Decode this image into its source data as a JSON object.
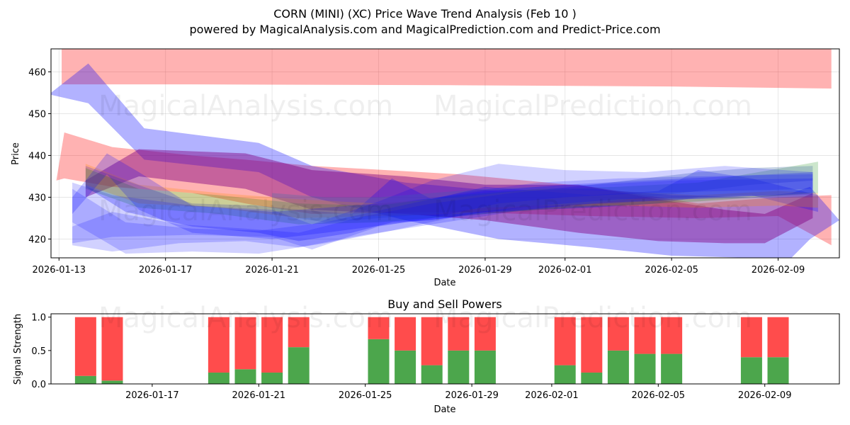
{
  "watermarks": [
    "MagicalAnalysis.com",
    "MagicalPrediction.com"
  ],
  "chart_data": [
    {
      "type": "area",
      "title": "CORN (MINI) (XC) Price Wave Trend Analysis (Feb 10 )",
      "subtitle": "powered by MagicalAnalysis.com and MagicalPrediction.com and Predict-Price.com",
      "xlabel": "Date",
      "ylabel": "Price",
      "xlim_days": [
        -0.3,
        29.3
      ],
      "ylim": [
        415.5,
        465.5
      ],
      "grid": true,
      "x_ticks": [
        {
          "day": 0,
          "label": "2026-01-13"
        },
        {
          "day": 4,
          "label": "2026-01-17"
        },
        {
          "day": 8,
          "label": "2026-01-21"
        },
        {
          "day": 12,
          "label": "2026-01-25"
        },
        {
          "day": 16,
          "label": "2026-01-29"
        },
        {
          "day": 19,
          "label": "2026-02-01"
        },
        {
          "day": 23,
          "label": "2026-02-05"
        },
        {
          "day": 27,
          "label": "2026-02-09"
        }
      ],
      "y_ticks": [
        420,
        430,
        440,
        450,
        460
      ],
      "colors": {
        "red": "#ff0000",
        "blue": "#0000ff",
        "green": "#008000",
        "purple": "#800080",
        "orange": "#ff8c00",
        "slate": "#4a6fa5"
      },
      "bands": [
        {
          "color": "red",
          "opacity": 0.3,
          "points": [
            [
              0.1,
              465.5,
              457.0
            ],
            [
              5,
              465.5,
              457.0
            ],
            [
              15,
              465.5,
              456.8
            ],
            [
              23,
              465.5,
              456.5
            ],
            [
              29,
              465.5,
              456.0
            ]
          ]
        },
        {
          "color": "red",
          "opacity": 0.3,
          "points": [
            [
              -0.1,
              434.0,
              434.0
            ],
            [
              0.2,
              445.5,
              434.5
            ],
            [
              2,
              442.0,
              432.5
            ],
            [
              5,
              440.0,
              431.0
            ],
            [
              7,
              439.0,
              428.5
            ],
            [
              9.5,
              437.5,
              426.0
            ],
            [
              15,
              435.5,
              426.5
            ],
            [
              20,
              432.5,
              425.5
            ],
            [
              24,
              428.5,
              425.0
            ],
            [
              27,
              430.0,
              425.5
            ],
            [
              29,
              430.5,
              418.5
            ]
          ]
        },
        {
          "color": "blue",
          "opacity": 0.3,
          "points": [
            [
              -0.3,
              455.0,
              454.5
            ],
            [
              1.1,
              462.0,
              452.5
            ],
            [
              3.2,
              446.5,
              439.0
            ],
            [
              7.5,
              443.0,
              436.0
            ],
            [
              9.5,
              437.5,
              430.0
            ],
            [
              13,
              433.5,
              424.5
            ],
            [
              16.5,
              431.5,
              420.0
            ],
            [
              20,
              432.0,
              418.0
            ],
            [
              23,
              430.5,
              416.0
            ],
            [
              26,
              430.0,
              415.5
            ],
            [
              27.5,
              431.0,
              415.5
            ],
            [
              28.2,
              432.5,
              420.0
            ],
            [
              29.3,
              424.5,
              424.5
            ]
          ]
        },
        {
          "color": "purple",
          "opacity": 0.45,
          "points": [
            [
              1.0,
              434.0,
              430.0
            ],
            [
              3,
              441.5,
              435.0
            ],
            [
              7,
              440.5,
              432.0
            ],
            [
              9.5,
              436.5,
              427.0
            ],
            [
              13,
              435.0,
              426.0
            ],
            [
              16,
              433.0,
              424.5
            ],
            [
              19.5,
              433.0,
              421.5
            ],
            [
              22.5,
              429.5,
              419.5
            ],
            [
              25,
              427.0,
              419.0
            ],
            [
              26.5,
              426.0,
              419.0
            ],
            [
              28.3,
              431.0,
              425.0
            ]
          ]
        },
        {
          "color": "blue",
          "opacity": 0.25,
          "points": [
            [
              1,
              437.5,
              432.5
            ],
            [
              2.5,
              434.0,
              426.5
            ],
            [
              5,
              428.5,
              423.0
            ],
            [
              7.5,
              428.0,
              421.5
            ],
            [
              9,
              427.0,
              419.5
            ],
            [
              11,
              426.0,
              421.5
            ],
            [
              12.5,
              434.5,
              424.0
            ],
            [
              14,
              429.5,
              424.5
            ],
            [
              16,
              432.5,
              426.5
            ],
            [
              18,
              431.5,
              427.0
            ],
            [
              20,
              430.5,
              427.5
            ],
            [
              22.5,
              431.5,
              428.5
            ],
            [
              24,
              436.5,
              430.0
            ],
            [
              26,
              434.5,
              430.5
            ],
            [
              28.5,
              430.5,
              426.5
            ]
          ]
        },
        {
          "color": "orange",
          "opacity": 0.25,
          "points": [
            [
              1,
              438.0,
              433.0
            ],
            [
              3,
              433.0,
              428.5
            ],
            [
              6,
              431.0,
              427.5
            ],
            [
              9,
              429.5,
              425.0
            ],
            [
              12,
              428.5,
              425.5
            ],
            [
              15,
              430.0,
              426.0
            ],
            [
              18,
              432.0,
              428.0
            ],
            [
              21,
              431.5,
              428.0
            ],
            [
              24,
              430.5,
              427.5
            ],
            [
              27,
              431.5,
              428.0
            ],
            [
              28.5,
              431.0,
              427.5
            ]
          ]
        },
        {
          "color": "green",
          "opacity": 0.2,
          "points": [
            [
              1,
              437.0,
              432.0
            ],
            [
              3,
              432.0,
              427.5
            ],
            [
              6,
              430.5,
              426.0
            ],
            [
              9,
              428.5,
              423.5
            ],
            [
              12,
              428.0,
              424.0
            ],
            [
              15,
              430.5,
              425.5
            ],
            [
              18,
              432.0,
              427.0
            ],
            [
              21,
              432.5,
              428.0
            ],
            [
              24,
              433.5,
              429.0
            ],
            [
              28.5,
              438.5,
              431.0
            ]
          ]
        },
        {
          "color": "slate",
          "opacity": 0.3,
          "points": [
            [
              8,
              431.0,
              426.0
            ],
            [
              10,
              430.0,
              424.0
            ],
            [
              12,
              430.0,
              425.0
            ],
            [
              14,
              431.0,
              426.0
            ],
            [
              16,
              432.0,
              427.5
            ],
            [
              18,
              432.5,
              428.0
            ],
            [
              20,
              433.0,
              428.5
            ],
            [
              22,
              434.5,
              430.0
            ],
            [
              24,
              436.0,
              431.5
            ],
            [
              26,
              437.0,
              433.0
            ],
            [
              28.3,
              437.5,
              434.0
            ]
          ]
        },
        {
          "color": "blue",
          "opacity": 0.18,
          "points": [
            [
              0.5,
              433.5,
              419.0
            ],
            [
              2,
              430.5,
              420.5
            ],
            [
              5,
              428.0,
              421.0
            ],
            [
              8,
              427.0,
              420.5
            ],
            [
              9.5,
              423.5,
              417.5
            ],
            [
              12,
              429.0,
              423.0
            ],
            [
              14,
              434.0,
              425.0
            ],
            [
              16.5,
              438.0,
              428.5
            ],
            [
              19,
              436.5,
              430.0
            ],
            [
              22,
              436.0,
              431.0
            ],
            [
              25,
              437.5,
              431.5
            ],
            [
              28.3,
              436.0,
              432.0
            ]
          ]
        },
        {
          "color": "blue",
          "opacity": 0.18,
          "points": [
            [
              0.5,
              432.0,
              424.0
            ],
            [
              2.5,
              424.0,
              416.5
            ],
            [
              5,
              422.5,
              417.0
            ],
            [
              7.5,
              422.0,
              416.5
            ],
            [
              10,
              424.0,
              419.0
            ],
            [
              12.5,
              427.5,
              422.0
            ],
            [
              15,
              431.0,
              425.5
            ],
            [
              18,
              433.5,
              428.0
            ],
            [
              21,
              434.5,
              429.5
            ],
            [
              24,
              435.0,
              430.0
            ],
            [
              28.3,
              435.5,
              430.5
            ]
          ]
        },
        {
          "color": "blue",
          "opacity": 0.18,
          "points": [
            [
              0.5,
              423.0,
              418.5
            ],
            [
              2,
              426.5,
              417.0
            ],
            [
              4.5,
              423.5,
              419.0
            ],
            [
              7,
              422.5,
              419.5
            ],
            [
              9,
              421.5,
              418.0
            ],
            [
              11.5,
              425.5,
              421.0
            ],
            [
              14,
              428.5,
              423.5
            ],
            [
              17,
              431.0,
              426.5
            ],
            [
              20,
              433.0,
              428.5
            ],
            [
              23,
              434.0,
              429.5
            ],
            [
              28.3,
              434.5,
              430.0
            ]
          ]
        },
        {
          "color": "blue",
          "opacity": 0.22,
          "points": [
            [
              0.5,
              430.0,
              426.0
            ],
            [
              1.8,
              440.5,
              435.5
            ],
            [
              3,
              436.0,
              427.0
            ],
            [
              5,
              428.0,
              421.5
            ],
            [
              8,
              426.5,
              420.0
            ],
            [
              10,
              427.5,
              421.5
            ],
            [
              13,
              429.0,
              424.0
            ],
            [
              16,
              431.5,
              426.0
            ],
            [
              19,
              433.0,
              428.0
            ],
            [
              22,
              434.0,
              429.0
            ],
            [
              28.3,
              436.0,
              431.0
            ]
          ]
        }
      ]
    },
    {
      "type": "bar",
      "title": "Buy and Sell Powers",
      "xlabel": "Date",
      "ylabel": "Signal Strength",
      "xlim_days": [
        -0.3,
        29.3
      ],
      "ylim": [
        0,
        1.05
      ],
      "y_ticks": [
        0.0,
        0.5,
        1.0
      ],
      "y_tick_labels": [
        "0.0",
        "0.5",
        "1.0"
      ],
      "x_ticks": [
        {
          "day": 3.5,
          "label": "2026-01-17"
        },
        {
          "day": 7.5,
          "label": "2026-01-21"
        },
        {
          "day": 11.5,
          "label": "2026-01-25"
        },
        {
          "day": 15.5,
          "label": "2026-01-29"
        },
        {
          "day": 18.5,
          "label": "2026-02-01"
        },
        {
          "day": 22.5,
          "label": "2026-02-05"
        },
        {
          "day": 26.5,
          "label": "2026-02-09"
        }
      ],
      "colors": {
        "buy": "#4ca64c",
        "sell": "#ff4c4c"
      },
      "bars": [
        {
          "day": 1,
          "buy": 0.12
        },
        {
          "day": 2,
          "buy": 0.05
        },
        {
          "day": 6,
          "buy": 0.17
        },
        {
          "day": 7,
          "buy": 0.22
        },
        {
          "day": 8,
          "buy": 0.17
        },
        {
          "day": 9,
          "buy": 0.55
        },
        {
          "day": 12,
          "buy": 0.67
        },
        {
          "day": 13,
          "buy": 0.5
        },
        {
          "day": 14,
          "buy": 0.28
        },
        {
          "day": 15,
          "buy": 0.5
        },
        {
          "day": 16,
          "buy": 0.5
        },
        {
          "day": 19,
          "buy": 0.28
        },
        {
          "day": 20,
          "buy": 0.17
        },
        {
          "day": 21,
          "buy": 0.5
        },
        {
          "day": 22,
          "buy": 0.45
        },
        {
          "day": 23,
          "buy": 0.45
        },
        {
          "day": 26,
          "buy": 0.4
        },
        {
          "day": 27,
          "buy": 0.4
        }
      ]
    }
  ]
}
